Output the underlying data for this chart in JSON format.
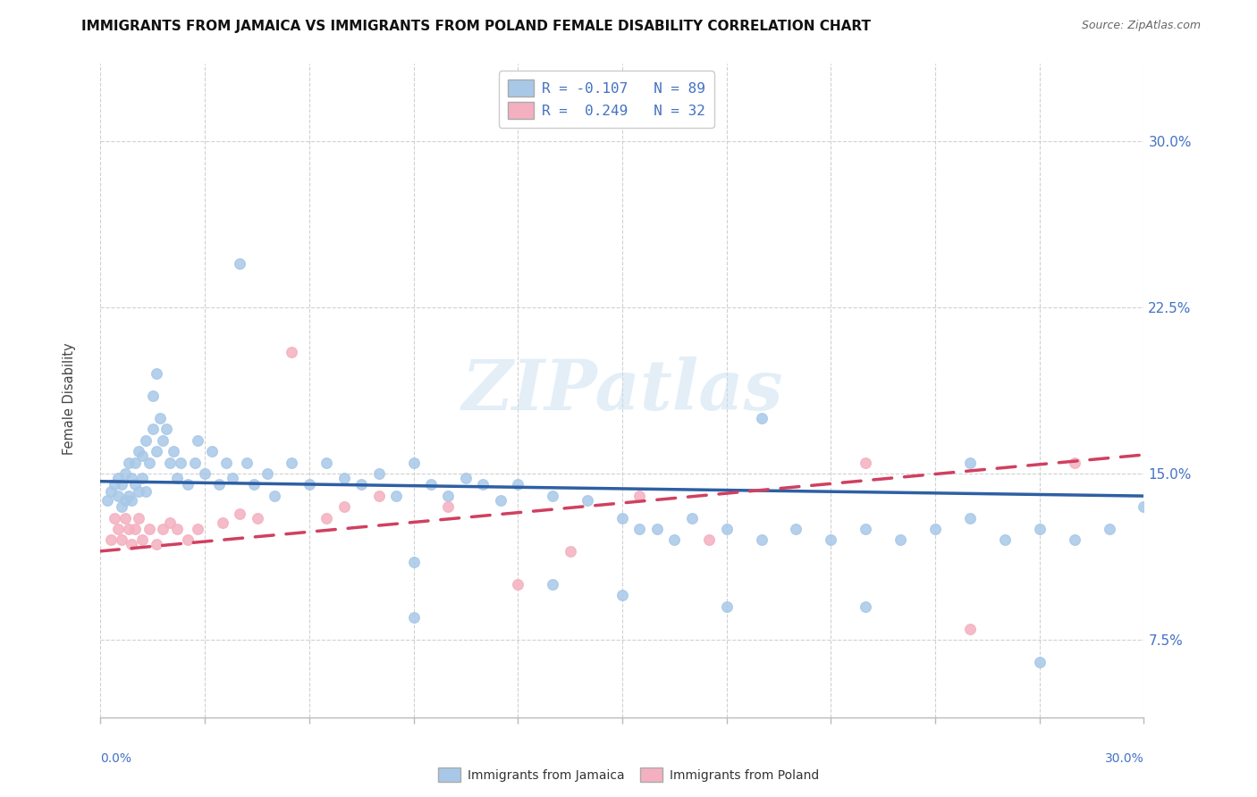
{
  "title": "IMMIGRANTS FROM JAMAICA VS IMMIGRANTS FROM POLAND FEMALE DISABILITY CORRELATION CHART",
  "source": "Source: ZipAtlas.com",
  "ylabel": "Female Disability",
  "y_ticks": [
    0.075,
    0.15,
    0.225,
    0.3
  ],
  "y_tick_labels": [
    "7.5%",
    "15.0%",
    "22.5%",
    "30.0%"
  ],
  "x_lim": [
    0.0,
    0.3
  ],
  "y_lim": [
    0.04,
    0.335
  ],
  "jamaica_color": "#a8c8e8",
  "poland_color": "#f4b0c0",
  "jamaica_line_color": "#2e5fa3",
  "poland_line_color": "#d04060",
  "label_color": "#4472c4",
  "tick_label_color": "#4472c4",
  "watermark": "ZIPatlas",
  "jamaica_label": "Immigrants from Jamaica",
  "poland_label": "Immigrants from Poland",
  "legend_text1": "R = -0.107   N = 89",
  "legend_text2": "R =  0.249   N = 32",
  "j_intercept": 0.1465,
  "j_slope": -0.022,
  "p_intercept": 0.115,
  "p_slope": 0.145,
  "jamaica_x": [
    0.002,
    0.003,
    0.004,
    0.005,
    0.005,
    0.006,
    0.006,
    0.007,
    0.007,
    0.008,
    0.008,
    0.009,
    0.009,
    0.01,
    0.01,
    0.011,
    0.011,
    0.012,
    0.012,
    0.013,
    0.013,
    0.014,
    0.015,
    0.015,
    0.016,
    0.016,
    0.017,
    0.018,
    0.019,
    0.02,
    0.021,
    0.022,
    0.023,
    0.025,
    0.027,
    0.028,
    0.03,
    0.032,
    0.034,
    0.036,
    0.038,
    0.042,
    0.044,
    0.048,
    0.05,
    0.055,
    0.06,
    0.065,
    0.07,
    0.075,
    0.08,
    0.085,
    0.09,
    0.095,
    0.1,
    0.105,
    0.11,
    0.115,
    0.12,
    0.13,
    0.14,
    0.15,
    0.155,
    0.16,
    0.165,
    0.17,
    0.18,
    0.19,
    0.2,
    0.21,
    0.22,
    0.23,
    0.24,
    0.25,
    0.26,
    0.27,
    0.28,
    0.29,
    0.3,
    0.04,
    0.09,
    0.19,
    0.25,
    0.27,
    0.09,
    0.13,
    0.15,
    0.18,
    0.22
  ],
  "jamaica_y": [
    0.138,
    0.142,
    0.145,
    0.14,
    0.148,
    0.135,
    0.145,
    0.138,
    0.15,
    0.14,
    0.155,
    0.138,
    0.148,
    0.145,
    0.155,
    0.142,
    0.16,
    0.148,
    0.158,
    0.142,
    0.165,
    0.155,
    0.17,
    0.185,
    0.16,
    0.195,
    0.175,
    0.165,
    0.17,
    0.155,
    0.16,
    0.148,
    0.155,
    0.145,
    0.155,
    0.165,
    0.15,
    0.16,
    0.145,
    0.155,
    0.148,
    0.155,
    0.145,
    0.15,
    0.14,
    0.155,
    0.145,
    0.155,
    0.148,
    0.145,
    0.15,
    0.14,
    0.155,
    0.145,
    0.14,
    0.148,
    0.145,
    0.138,
    0.145,
    0.14,
    0.138,
    0.13,
    0.125,
    0.125,
    0.12,
    0.13,
    0.125,
    0.12,
    0.125,
    0.12,
    0.125,
    0.12,
    0.125,
    0.13,
    0.12,
    0.125,
    0.12,
    0.125,
    0.135,
    0.245,
    0.085,
    0.175,
    0.155,
    0.065,
    0.11,
    0.1,
    0.095,
    0.09,
    0.09
  ],
  "poland_x": [
    0.003,
    0.004,
    0.005,
    0.006,
    0.007,
    0.008,
    0.009,
    0.01,
    0.011,
    0.012,
    0.014,
    0.016,
    0.018,
    0.02,
    0.022,
    0.025,
    0.028,
    0.035,
    0.04,
    0.045,
    0.055,
    0.065,
    0.07,
    0.08,
    0.1,
    0.12,
    0.135,
    0.155,
    0.175,
    0.22,
    0.25,
    0.28
  ],
  "poland_y": [
    0.12,
    0.13,
    0.125,
    0.12,
    0.13,
    0.125,
    0.118,
    0.125,
    0.13,
    0.12,
    0.125,
    0.118,
    0.125,
    0.128,
    0.125,
    0.12,
    0.125,
    0.128,
    0.132,
    0.13,
    0.205,
    0.13,
    0.135,
    0.14,
    0.135,
    0.1,
    0.115,
    0.14,
    0.12,
    0.155,
    0.08,
    0.155
  ]
}
